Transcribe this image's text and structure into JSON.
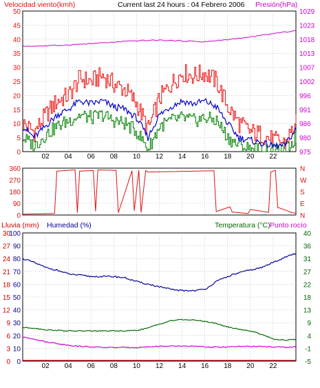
{
  "header": {
    "wind_label": "Velocidad viento(kmh)",
    "period_label": "Current last 24 hours : 04 Febrero 2006",
    "pressure_label": "Presión(hPa)"
  },
  "bottom_header": {
    "rain_label": "Lluvia (mm)",
    "humidity_label": "Humedad (%)",
    "temp_label": "Temperatura (°C)",
    "dew_label": "Punto rocío"
  },
  "colors": {
    "frame": "#000000",
    "wind_gust": "#ee1111",
    "wind_avg": "#0000cc",
    "wind_low": "#008000",
    "pressure": "#cc00cc",
    "direction": "#dd1111",
    "humidity": "#000099",
    "temperature": "#006600",
    "dew_point": "#cc00cc",
    "rain": "#cc0000",
    "grid": "#999999"
  },
  "x_axis": {
    "tick_labels": [
      "02",
      "04",
      "06",
      "08",
      "10",
      "12",
      "14",
      "16",
      "18",
      "20",
      "22"
    ],
    "range_hours": [
      0,
      24
    ]
  },
  "chart_data": [
    {
      "type": "line",
      "name": "wind",
      "x_ticks": [
        "02",
        "04",
        "06",
        "08",
        "10",
        "12",
        "14",
        "16",
        "18",
        "20",
        "22"
      ],
      "left_axis": {
        "label": "Velocidad viento(kmh)",
        "ylim": [
          0,
          50
        ],
        "ticks": [
          0,
          5,
          10,
          15,
          20,
          25,
          30,
          35,
          40,
          45,
          50
        ]
      },
      "right_axis": {
        "label": "Presión(hPa)",
        "ylim": [
          975,
          1029
        ],
        "ticks": [
          "975",
          "980",
          "986",
          "991",
          "996",
          "1002",
          "1007",
          "1013",
          "1018",
          "1023",
          "1029"
        ]
      },
      "grid": true,
      "series": [
        {
          "key": "gust",
          "hours": [
            0,
            1,
            2,
            3,
            4,
            5,
            6,
            7,
            8,
            9,
            10,
            11,
            12,
            13,
            14,
            15,
            16,
            17,
            18,
            19,
            20,
            21,
            22,
            23,
            24
          ],
          "values": [
            10,
            7,
            13,
            18,
            20,
            26,
            25,
            27,
            24,
            22,
            17,
            8,
            19,
            24,
            28,
            27,
            28,
            25,
            16,
            10,
            7,
            6,
            4,
            3,
            10
          ]
        },
        {
          "key": "average",
          "hours": [
            0,
            1,
            2,
            3,
            4,
            5,
            6,
            7,
            8,
            9,
            10,
            11,
            12,
            13,
            14,
            15,
            16,
            17,
            18,
            19,
            20,
            21,
            22,
            23,
            24
          ],
          "values": [
            9,
            5,
            9,
            13,
            15,
            18,
            17,
            18,
            16,
            15,
            12,
            5,
            13,
            16,
            18,
            17,
            18,
            16,
            10,
            5,
            4,
            3,
            2,
            2,
            8
          ]
        },
        {
          "key": "low",
          "hours": [
            0,
            1,
            2,
            3,
            4,
            5,
            6,
            7,
            8,
            9,
            10,
            11,
            12,
            13,
            14,
            15,
            16,
            17,
            18,
            19,
            20,
            21,
            22,
            23,
            24
          ],
          "values": [
            5,
            2,
            6,
            9,
            11,
            13,
            12,
            13,
            11,
            10,
            7,
            1,
            9,
            11,
            12,
            11,
            12,
            11,
            5,
            2,
            1,
            1,
            0,
            0,
            5
          ]
        },
        {
          "key": "pressure",
          "axis": "right",
          "hours": [
            0,
            2,
            4,
            6,
            8,
            10,
            12,
            14,
            16,
            18,
            20,
            22,
            24
          ],
          "values": [
            1015.5,
            1015.6,
            1016.0,
            1016.5,
            1017.0,
            1017.6,
            1017.8,
            1017.5,
            1017.2,
            1018.0,
            1019.0,
            1020.3,
            1021.5
          ]
        }
      ]
    },
    {
      "type": "line",
      "name": "wind_direction",
      "x_ticks": [
        "02",
        "04",
        "06",
        "08",
        "10",
        "12",
        "14",
        "16",
        "18",
        "20",
        "22"
      ],
      "left_axis": {
        "ylim": [
          0,
          360
        ],
        "ticks": [
          0,
          90,
          180,
          270,
          360
        ]
      },
      "right_axis": {
        "ticks": [
          "N",
          "E",
          "S",
          "W",
          "N"
        ]
      },
      "grid": true,
      "series": [
        {
          "key": "direction",
          "hours": [
            0,
            2.8,
            3.0,
            4.6,
            4.8,
            5.0,
            6.2,
            6.4,
            6.6,
            8.2,
            8.4,
            9.6,
            9.8,
            10.2,
            10.4,
            10.8,
            11.0,
            16.8,
            17.0,
            18.2,
            18.4,
            19.8,
            20.0,
            21.6,
            21.8,
            22.2,
            22.4,
            23.4,
            23.6,
            24
          ],
          "values": [
            10,
            15,
            340,
            345,
            20,
            340,
            340,
            25,
            345,
            340,
            15,
            340,
            30,
            345,
            20,
            340,
            330,
            340,
            30,
            60,
            20,
            10,
            40,
            20,
            330,
            340,
            60,
            30,
            15,
            10
          ]
        }
      ]
    },
    {
      "type": "line",
      "name": "humidity_temperature",
      "x_ticks": [
        "02",
        "04",
        "06",
        "08",
        "10",
        "12",
        "14",
        "16",
        "18",
        "20",
        "22"
      ],
      "left_axis_rain": {
        "label": "Lluvia (mm)",
        "ticks": [
          "0",
          "3",
          "6",
          "9",
          "12",
          "15",
          "18",
          "21",
          "24",
          "27",
          "30"
        ]
      },
      "left_axis_humidity": {
        "label": "Humedad (%)",
        "ylim": [
          0,
          100
        ],
        "ticks": [
          0,
          10,
          20,
          30,
          40,
          50,
          60,
          70,
          80,
          90,
          100
        ]
      },
      "right_axis": {
        "label": "Temperatura (°C)",
        "ylim": [
          -5,
          40
        ],
        "ticks": [
          "-5",
          "-1",
          "4",
          "9",
          "13",
          "18",
          "22",
          "27",
          "31",
          "36",
          "40"
        ]
      },
      "grid": true,
      "series": [
        {
          "key": "humidity",
          "hours": [
            0,
            1,
            2,
            3,
            4,
            5,
            6,
            7,
            8,
            9,
            10,
            11,
            12,
            13,
            14,
            15,
            16,
            17,
            18,
            19,
            20,
            21,
            22,
            23,
            24
          ],
          "values": [
            80,
            77,
            73,
            71,
            68,
            67,
            66,
            66,
            66,
            65,
            62,
            60,
            58,
            56,
            55,
            55,
            56,
            62,
            66,
            69,
            71,
            73,
            77,
            81,
            84
          ]
        },
        {
          "key": "temperature",
          "hours": [
            0,
            1,
            2,
            3,
            4,
            5,
            6,
            7,
            8,
            9,
            10,
            11,
            12,
            13,
            14,
            15,
            16,
            17,
            18,
            19,
            20,
            21,
            22,
            23,
            24
          ],
          "values": [
            6.8,
            6.6,
            6.0,
            5.8,
            5.6,
            5.6,
            5.6,
            5.6,
            5.6,
            5.6,
            5.8,
            6.6,
            8.0,
            9.2,
            9.6,
            9.4,
            9.0,
            8.2,
            7.0,
            6.2,
            5.6,
            4.4,
            2.8,
            2.4,
            2.6
          ]
        },
        {
          "key": "dew_point",
          "hours": [
            0,
            1,
            2,
            3,
            4,
            5,
            6,
            7,
            8,
            9,
            10,
            11,
            12,
            13,
            14,
            15,
            16,
            17,
            18,
            19,
            20,
            21,
            22,
            23,
            24
          ],
          "values": [
            3.4,
            2.8,
            1.8,
            1.2,
            0.6,
            0.2,
            0.0,
            -0.2,
            -0.2,
            -0.2,
            -0.2,
            0.0,
            0.2,
            0.2,
            0.3,
            0.2,
            0.0,
            -0.1,
            0.0,
            0.1,
            0.2,
            0.1,
            0.0,
            -0.1,
            0.0
          ]
        },
        {
          "key": "rain",
          "hours": [
            0,
            24
          ],
          "values": [
            0,
            0
          ]
        }
      ]
    }
  ]
}
